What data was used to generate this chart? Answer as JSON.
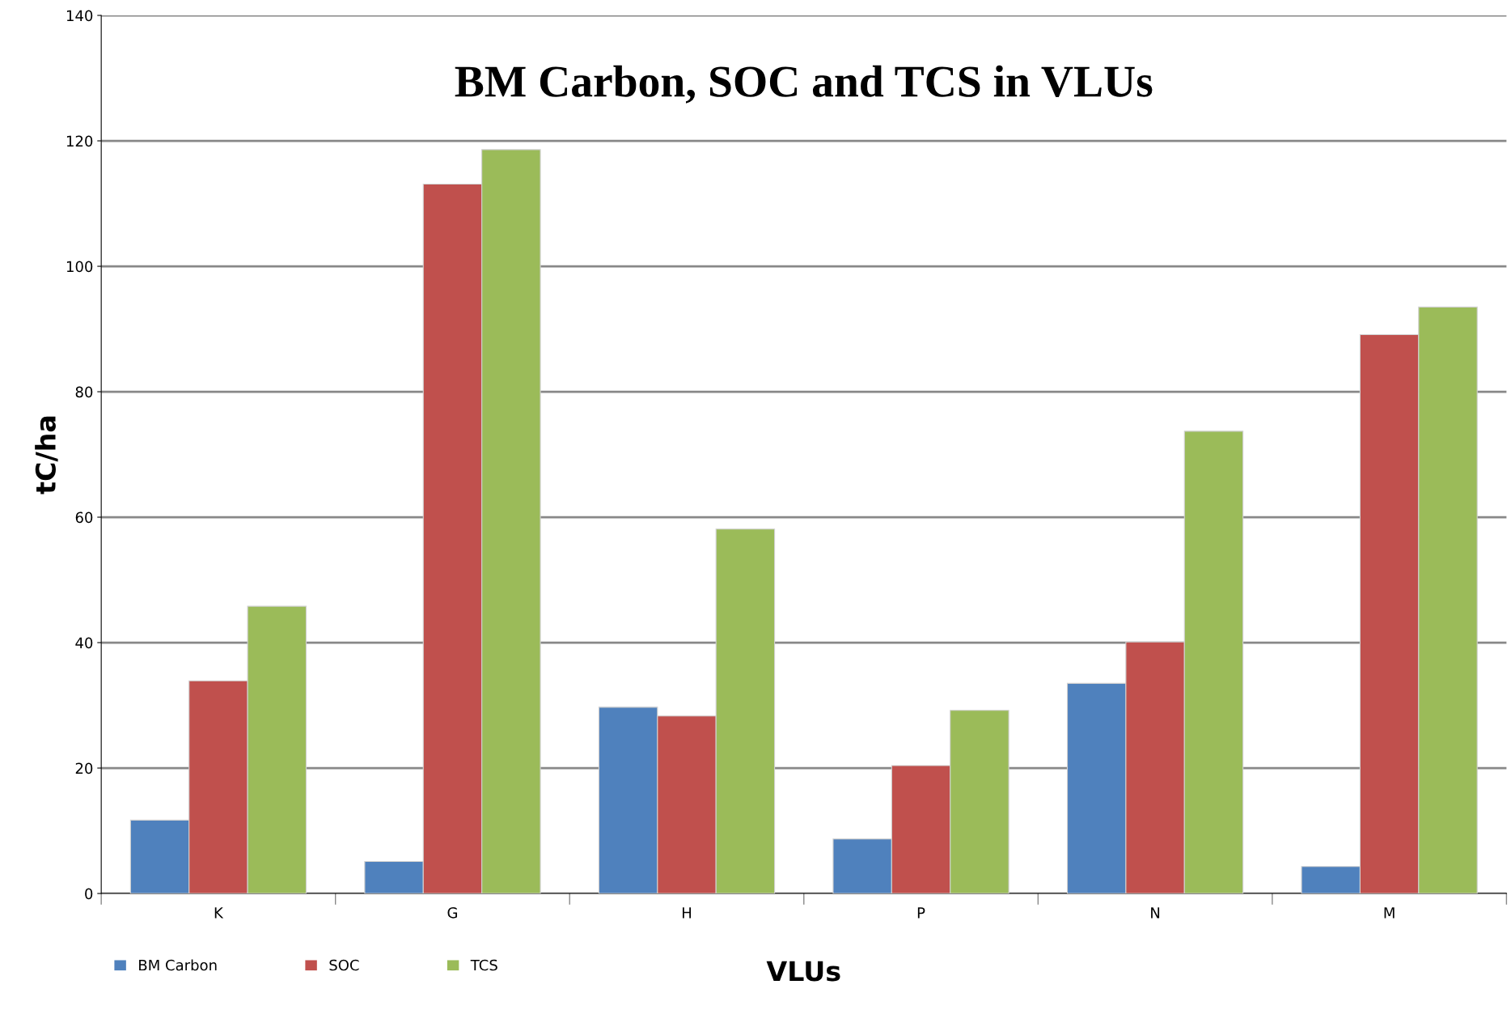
{
  "chart_data": {
    "type": "bar",
    "title": "BM Carbon, SOC and TCS in VLUs",
    "xlabel": "VLUs",
    "ylabel": "tC/ha",
    "categories": [
      "K",
      "G",
      "H",
      "P",
      "N",
      "M"
    ],
    "series": [
      {
        "name": "BM Carbon",
        "color": "#4f81bd",
        "values": [
          11.7,
          5.1,
          29.7,
          8.7,
          33.5,
          4.3
        ]
      },
      {
        "name": "SOC",
        "color": "#c0504d",
        "values": [
          33.9,
          113.1,
          28.3,
          20.4,
          40.1,
          89.1
        ]
      },
      {
        "name": "TCS",
        "color": "#9bbb59",
        "values": [
          45.8,
          118.6,
          58.1,
          29.2,
          73.7,
          93.5
        ]
      }
    ],
    "ylim": [
      0,
      140
    ],
    "yticks": [
      0,
      20,
      40,
      60,
      80,
      100,
      120,
      140
    ],
    "grid": "y",
    "legend": "bottom left"
  }
}
